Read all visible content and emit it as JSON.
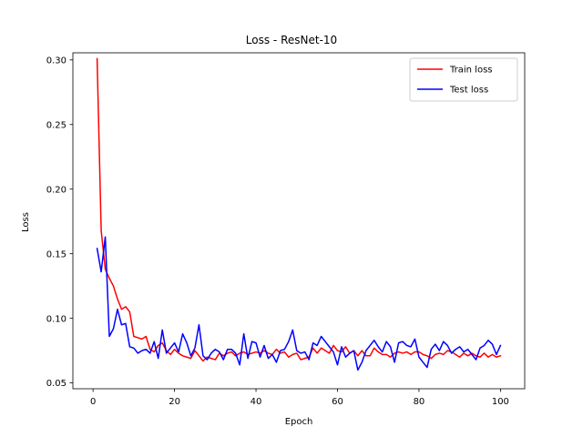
{
  "chart_data": {
    "type": "line",
    "title": "Loss - ResNet-10",
    "xlabel": "Epoch",
    "ylabel": "Loss",
    "xlim": [
      -4.95,
      105.95
    ],
    "ylim": [
      0.0455,
      0.3055
    ],
    "xticks": [
      0,
      20,
      40,
      60,
      80,
      100
    ],
    "yticks": [
      0.05,
      0.1,
      0.15,
      0.2,
      0.25,
      0.3
    ],
    "ytick_labels": [
      "0.05",
      "0.10",
      "0.15",
      "0.20",
      "0.25",
      "0.30"
    ],
    "grid": false,
    "legend_position": "upper right",
    "x": [
      1,
      2,
      3,
      4,
      5,
      6,
      7,
      8,
      9,
      10,
      11,
      12,
      13,
      14,
      15,
      16,
      17,
      18,
      19,
      20,
      21,
      22,
      23,
      24,
      25,
      26,
      27,
      28,
      29,
      30,
      31,
      32,
      33,
      34,
      35,
      36,
      37,
      38,
      39,
      40,
      41,
      42,
      43,
      44,
      45,
      46,
      47,
      48,
      49,
      50,
      51,
      52,
      53,
      54,
      55,
      56,
      57,
      58,
      59,
      60,
      61,
      62,
      63,
      64,
      65,
      66,
      67,
      68,
      69,
      70,
      71,
      72,
      73,
      74,
      75,
      76,
      77,
      78,
      79,
      80,
      81,
      82,
      83,
      84,
      85,
      86,
      87,
      88,
      89,
      90,
      91,
      92,
      93,
      94,
      95,
      96,
      97,
      98,
      99,
      100
    ],
    "series": [
      {
        "name": "Train loss",
        "color": "#ff0000",
        "values": [
          0.301,
          0.168,
          0.138,
          0.131,
          0.125,
          0.115,
          0.107,
          0.109,
          0.105,
          0.086,
          0.085,
          0.084,
          0.086,
          0.076,
          0.074,
          0.079,
          0.081,
          0.075,
          0.072,
          0.076,
          0.073,
          0.071,
          0.07,
          0.069,
          0.075,
          0.071,
          0.067,
          0.07,
          0.069,
          0.068,
          0.073,
          0.071,
          0.073,
          0.074,
          0.071,
          0.073,
          0.074,
          0.072,
          0.073,
          0.074,
          0.073,
          0.075,
          0.073,
          0.072,
          0.076,
          0.073,
          0.074,
          0.07,
          0.072,
          0.073,
          0.068,
          0.069,
          0.07,
          0.077,
          0.073,
          0.077,
          0.075,
          0.073,
          0.079,
          0.075,
          0.074,
          0.078,
          0.073,
          0.075,
          0.071,
          0.075,
          0.071,
          0.071,
          0.077,
          0.074,
          0.072,
          0.072,
          0.07,
          0.073,
          0.074,
          0.073,
          0.074,
          0.072,
          0.074,
          0.074,
          0.072,
          0.071,
          0.069,
          0.072,
          0.073,
          0.072,
          0.075,
          0.074,
          0.072,
          0.07,
          0.073,
          0.071,
          0.073,
          0.071,
          0.07,
          0.073,
          0.07,
          0.072,
          0.07,
          0.071
        ]
      },
      {
        "name": "Test loss",
        "color": "#0000ff",
        "values": [
          0.154,
          0.136,
          0.163,
          0.086,
          0.092,
          0.107,
          0.095,
          0.096,
          0.078,
          0.077,
          0.073,
          0.075,
          0.076,
          0.073,
          0.082,
          0.069,
          0.091,
          0.073,
          0.077,
          0.081,
          0.074,
          0.088,
          0.081,
          0.071,
          0.077,
          0.095,
          0.071,
          0.068,
          0.073,
          0.076,
          0.074,
          0.068,
          0.076,
          0.076,
          0.073,
          0.064,
          0.088,
          0.069,
          0.082,
          0.081,
          0.07,
          0.079,
          0.069,
          0.072,
          0.066,
          0.075,
          0.076,
          0.082,
          0.091,
          0.075,
          0.073,
          0.074,
          0.068,
          0.081,
          0.079,
          0.086,
          0.082,
          0.078,
          0.074,
          0.064,
          0.078,
          0.07,
          0.073,
          0.075,
          0.06,
          0.066,
          0.075,
          0.079,
          0.083,
          0.078,
          0.074,
          0.082,
          0.078,
          0.066,
          0.081,
          0.082,
          0.079,
          0.078,
          0.084,
          0.07,
          0.066,
          0.062,
          0.076,
          0.08,
          0.075,
          0.082,
          0.079,
          0.073,
          0.076,
          0.078,
          0.074,
          0.076,
          0.072,
          0.068,
          0.077,
          0.079,
          0.083,
          0.08,
          0.072,
          0.079
        ]
      }
    ]
  }
}
